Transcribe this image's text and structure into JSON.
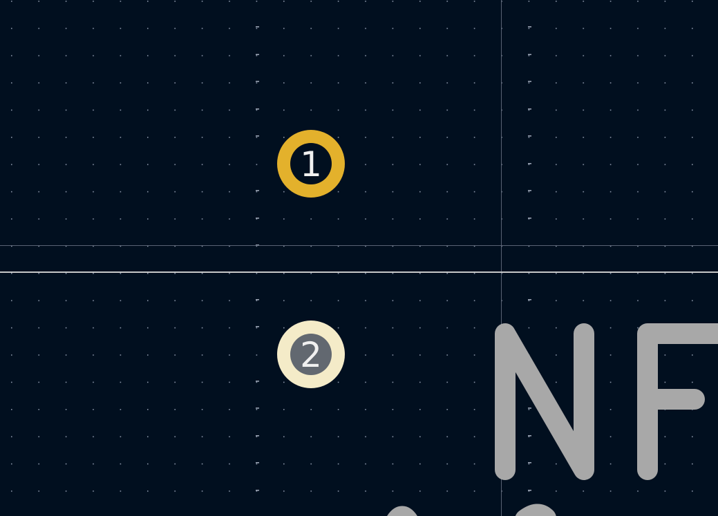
{
  "view": {
    "type": "pcb-footprint-editor",
    "background_color": "#010f1f",
    "grid_color": "#8a95a8",
    "crosshair_color": "#6a7384",
    "silk_line_color": "#c8c8c8",
    "silk_text_color": "#a8a8a8"
  },
  "pads": [
    {
      "number": "1",
      "shape": "circle",
      "ring_color": "#e3b12c",
      "hole_color": "#010f1f",
      "highlighted": true
    },
    {
      "number": "2",
      "shape": "circle",
      "ring_color": "#f4ebc8",
      "hole_color": "#626870",
      "highlighted": false
    }
  ],
  "reference_text": {
    "value": "NF",
    "color": "#a8a8a8"
  },
  "icons": {
    "pad_1": "through-hole-pad-icon",
    "pad_2": "through-hole-pad-icon"
  }
}
